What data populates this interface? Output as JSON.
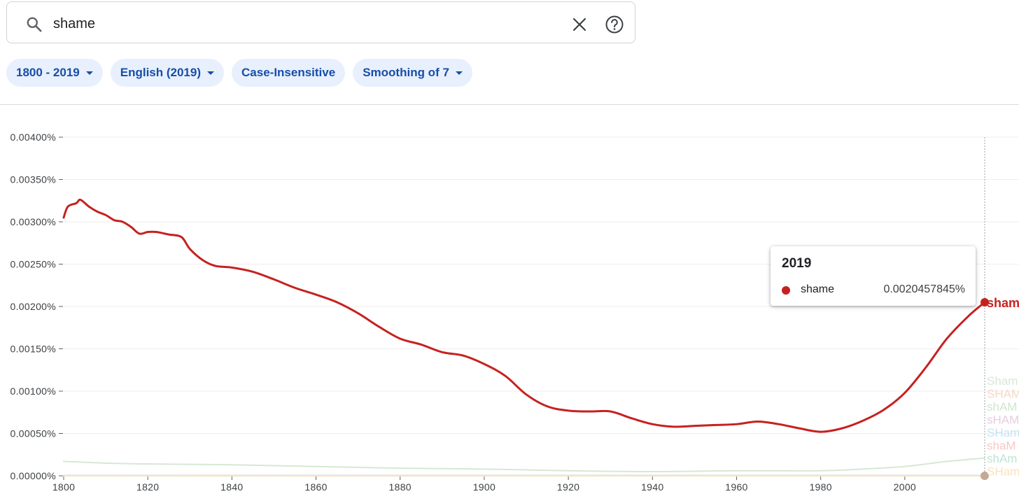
{
  "search": {
    "query": "shame",
    "icon": "search-icon",
    "clear_icon": "close-icon",
    "help_icon": "help-icon"
  },
  "chips": [
    {
      "label": "1800 - 2019",
      "has_dropdown": true
    },
    {
      "label": "English (2019)",
      "has_dropdown": true
    },
    {
      "label": "Case-Insensitive",
      "has_dropdown": false
    },
    {
      "label": "Smoothing of 7",
      "has_dropdown": true
    }
  ],
  "tooltip": {
    "year": "2019",
    "series_name": "shame",
    "value": "0.0020457845%"
  },
  "colors": {
    "chip_bg": "#e8f0fe",
    "chip_text": "#174ea6",
    "main_series": "#c5221f"
  },
  "chart_data": {
    "type": "line",
    "title": "",
    "xlabel": "",
    "ylabel": "",
    "xlim": [
      1800,
      2019
    ],
    "ylim": [
      0,
      0.004
    ],
    "x_ticks": [
      1800,
      1820,
      1840,
      1860,
      1880,
      1900,
      1920,
      1940,
      1960,
      1980,
      2000
    ],
    "y_ticks": [
      "0.00000%",
      "0.00050%",
      "0.00100%",
      "0.00150%",
      "0.00200%",
      "0.00250%",
      "0.00300%",
      "0.00350%",
      "0.00400%"
    ],
    "y_tick_values": [
      0,
      0.0005,
      0.001,
      0.0015,
      0.002,
      0.0025,
      0.003,
      0.0035,
      0.004
    ],
    "grid": true,
    "hover_year": 2019,
    "series": [
      {
        "name": "shame",
        "label": "sham",
        "color": "#c5221f",
        "x": [
          1800,
          1801,
          1803,
          1804,
          1806,
          1808,
          1810,
          1812,
          1814,
          1816,
          1818,
          1820,
          1822,
          1825,
          1828,
          1830,
          1833,
          1836,
          1840,
          1845,
          1850,
          1855,
          1860,
          1865,
          1870,
          1875,
          1880,
          1885,
          1890,
          1895,
          1900,
          1905,
          1910,
          1915,
          1920,
          1925,
          1930,
          1935,
          1940,
          1945,
          1950,
          1955,
          1960,
          1965,
          1970,
          1975,
          1980,
          1985,
          1990,
          1995,
          2000,
          2005,
          2010,
          2015,
          2019
        ],
        "y": [
          0.00305,
          0.00318,
          0.00322,
          0.00326,
          0.00318,
          0.00312,
          0.00308,
          0.00302,
          0.003,
          0.00294,
          0.00286,
          0.00288,
          0.00288,
          0.00285,
          0.00282,
          0.00268,
          0.00255,
          0.00248,
          0.00246,
          0.00241,
          0.00232,
          0.00222,
          0.00214,
          0.00205,
          0.00192,
          0.00176,
          0.00162,
          0.00155,
          0.00146,
          0.00142,
          0.00132,
          0.00118,
          0.00096,
          0.00082,
          0.00077,
          0.00076,
          0.00076,
          0.00068,
          0.00061,
          0.00058,
          0.00059,
          0.0006,
          0.00061,
          0.00064,
          0.00061,
          0.00056,
          0.00052,
          0.00056,
          0.00065,
          0.00078,
          0.00098,
          0.00128,
          0.00162,
          0.00188,
          0.00205
        ]
      },
      {
        "name": "Shame",
        "label": "Sham",
        "color": "#d6e8d6",
        "x": [
          1800,
          1810,
          1820,
          1840,
          1860,
          1880,
          1900,
          1920,
          1940,
          1960,
          1980,
          1990,
          2000,
          2010,
          2019
        ],
        "y": [
          0.00017,
          0.00015,
          0.00014,
          0.00013,
          0.00011,
          9e-05,
          8e-05,
          6e-05,
          5e-05,
          6e-05,
          6e-05,
          8e-05,
          0.00011,
          0.00017,
          0.00021
        ]
      },
      {
        "name": "SHAME",
        "label": "SHAM",
        "color": "#f6d7c8",
        "x": [
          1800,
          2019
        ],
        "y": [
          3e-06,
          3e-06
        ]
      },
      {
        "name": "shAME",
        "label": "shAM",
        "color": "#cfe6cf",
        "x": [
          1800,
          2019
        ],
        "y": [
          2e-06,
          2e-06
        ]
      },
      {
        "name": "sHAME",
        "label": "sHAM",
        "color": "#e8cde0",
        "x": [
          1800,
          2019
        ],
        "y": [
          2e-06,
          2e-06
        ]
      },
      {
        "name": "SHame",
        "label": "SHam",
        "color": "#c6e2f2",
        "x": [
          1800,
          2019
        ],
        "y": [
          1e-06,
          1e-06
        ]
      },
      {
        "name": "shaME",
        "label": "shaM",
        "color": "#f7c9c5",
        "x": [
          1800,
          2019
        ],
        "y": [
          1e-06,
          1e-06
        ]
      },
      {
        "name": "shAMe",
        "label": "shAm",
        "color": "#bfe3d3",
        "x": [
          1800,
          2019
        ],
        "y": [
          1e-06,
          1e-06
        ]
      },
      {
        "name": "SHame_",
        "label": "SHam",
        "color": "#f8e2bf",
        "x": [
          1800,
          2019
        ],
        "y": [
          5e-07,
          5e-07
        ]
      }
    ]
  }
}
